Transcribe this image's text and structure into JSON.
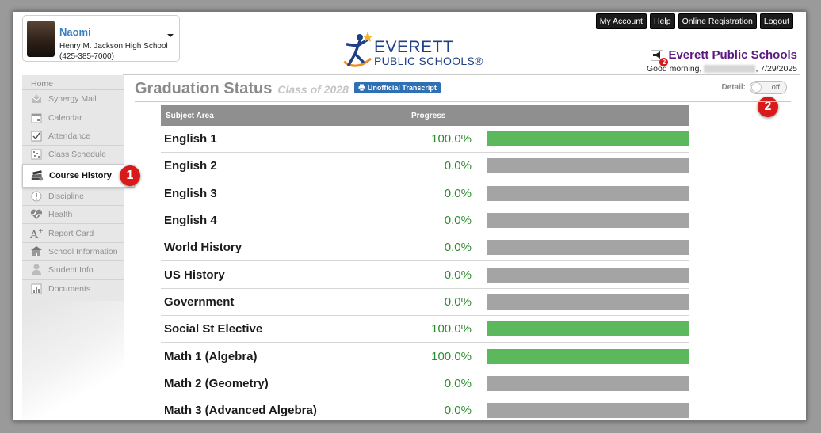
{
  "student": {
    "name": "Naomi",
    "school": "Henry M. Jackson High School",
    "phone": "(425-385-7000)"
  },
  "logo": {
    "line1": "EVERETT",
    "line2": "PUBLIC SCHOOLS®"
  },
  "top_nav": [
    "My Account",
    "Help",
    "Online Registration",
    "Logout"
  ],
  "district": {
    "name": "Everett Public Schools",
    "notification_count": "2",
    "greeting": "Good morning,",
    "date": ", 7/29/2025"
  },
  "sidebar": {
    "home": "Home",
    "items": [
      {
        "label": "Synergy Mail",
        "icon": "mail-icon",
        "active": false
      },
      {
        "label": "Calendar",
        "icon": "calendar-icon",
        "active": false
      },
      {
        "label": "Attendance",
        "icon": "attendance-icon",
        "active": false
      },
      {
        "label": "Class Schedule",
        "icon": "schedule-icon",
        "active": false
      },
      {
        "label": "Course History",
        "icon": "books-icon",
        "active": true
      },
      {
        "label": "Discipline",
        "icon": "alert-icon",
        "active": false
      },
      {
        "label": "Health",
        "icon": "heart-pulse-icon",
        "active": false
      },
      {
        "label": "Report Card",
        "icon": "grade-icon",
        "active": false
      },
      {
        "label": "School Information",
        "icon": "school-icon",
        "active": false
      },
      {
        "label": "Student Info",
        "icon": "person-icon",
        "active": false
      },
      {
        "label": "Documents",
        "icon": "documents-icon",
        "active": false
      }
    ]
  },
  "callouts": {
    "first": "1",
    "second": "2"
  },
  "main": {
    "title": "Graduation Status",
    "class_of": "Class of 2028",
    "transcript_button": "Unofficial Transcript",
    "detail_label": "Detail:",
    "detail_state": "off"
  },
  "table": {
    "headers": {
      "subject": "Subject Area",
      "progress": "Progress"
    },
    "rows": [
      {
        "subject": "English 1",
        "progress": "100.0%",
        "fraction": 1.0
      },
      {
        "subject": "English 2",
        "progress": "0.0%",
        "fraction": 0.0
      },
      {
        "subject": "English 3",
        "progress": "0.0%",
        "fraction": 0.0
      },
      {
        "subject": "English 4",
        "progress": "0.0%",
        "fraction": 0.0
      },
      {
        "subject": "World History",
        "progress": "0.0%",
        "fraction": 0.0
      },
      {
        "subject": "US History",
        "progress": "0.0%",
        "fraction": 0.0
      },
      {
        "subject": "Government",
        "progress": "0.0%",
        "fraction": 0.0
      },
      {
        "subject": "Social St Elective",
        "progress": "100.0%",
        "fraction": 1.0
      },
      {
        "subject": "Math 1 (Algebra)",
        "progress": "100.0%",
        "fraction": 1.0
      },
      {
        "subject": "Math 2 (Geometry)",
        "progress": "0.0%",
        "fraction": 0.0
      },
      {
        "subject": "Math 3 (Advanced Algebra)",
        "progress": "0.0%",
        "fraction": 0.0
      }
    ]
  },
  "colors": {
    "progress_complete": "#5cb85c",
    "progress_empty": "#a4a4a4",
    "district_purple": "#5b1a7e",
    "callout_red": "#d91a1a"
  }
}
